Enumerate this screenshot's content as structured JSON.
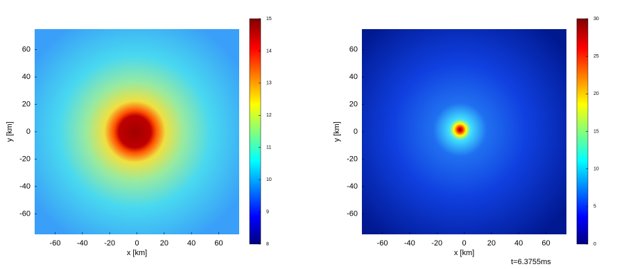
{
  "chart_data": [
    {
      "type": "heatmap",
      "xlabel": "x [km]",
      "ylabel": "y [km]",
      "xlim": [
        -75,
        75
      ],
      "ylim": [
        -75,
        75
      ],
      "xticks": [
        -60,
        -40,
        -20,
        0,
        20,
        40,
        60
      ],
      "yticks": [
        -60,
        -40,
        -20,
        0,
        20,
        40,
        60
      ],
      "clim": [
        8,
        15
      ],
      "cticks": [
        8,
        9,
        10,
        11,
        12,
        13,
        14,
        15
      ]
    },
    {
      "type": "heatmap",
      "xlabel": "x [km]",
      "ylabel": "y [km]",
      "xlim": [
        -75,
        75
      ],
      "ylim": [
        -75,
        75
      ],
      "xticks": [
        -60,
        -40,
        -20,
        0,
        20,
        40,
        60
      ],
      "yticks": [
        -60,
        -40,
        -20,
        0,
        20,
        40,
        60
      ],
      "clim": [
        0,
        30
      ],
      "cticks": [
        0,
        5,
        10,
        15,
        20,
        25,
        30
      ],
      "annotation": "t=6.3755ms"
    }
  ]
}
